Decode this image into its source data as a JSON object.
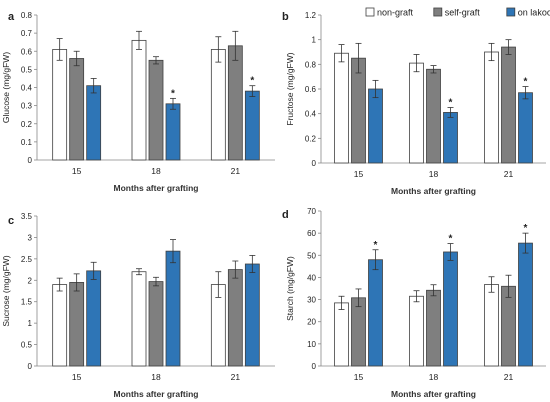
{
  "colors": {
    "non_graft": "#ffffff",
    "self_graft": "#7f7f7f",
    "on_lakoocha": "#2e75b6",
    "bar_stroke": "#404040",
    "axis": "#888888"
  },
  "chart_data": [
    {
      "type": "bar",
      "panel": "a",
      "categories": [
        "15",
        "18",
        "21"
      ],
      "xlabel": "Months after grafting",
      "ylabel": "Glucose (mg/gFW)",
      "ylim": [
        0,
        0.8
      ],
      "yticks": [
        "0",
        "0.1",
        "0.2",
        "0.3",
        "0.4",
        "0.5",
        "0.6",
        "0.7",
        "0.8"
      ],
      "grid": false,
      "legend": "none",
      "series": [
        {
          "name": "non-graft",
          "values": [
            0.61,
            0.66,
            0.61
          ],
          "errors": [
            0.06,
            0.05,
            0.07
          ]
        },
        {
          "name": "self-graft",
          "values": [
            0.56,
            0.55,
            0.63
          ],
          "errors": [
            0.04,
            0.02,
            0.08
          ]
        },
        {
          "name": "on lakoocha",
          "values": [
            0.41,
            0.31,
            0.38
          ],
          "errors": [
            0.04,
            0.03,
            0.03
          ]
        }
      ],
      "significance": [
        false,
        true,
        true
      ]
    },
    {
      "type": "bar",
      "panel": "b",
      "categories": [
        "15",
        "18",
        "21"
      ],
      "xlabel": "Months after grafting",
      "ylabel": "Fructose (mg/gFW)",
      "ylim": [
        0,
        1.2
      ],
      "yticks": [
        "0",
        "0.2",
        "0.4",
        "0.6",
        "0.8",
        "1",
        "1.2"
      ],
      "grid": false,
      "legend": "top",
      "series": [
        {
          "name": "non-graft",
          "values": [
            0.89,
            0.81,
            0.9
          ],
          "errors": [
            0.07,
            0.07,
            0.07
          ]
        },
        {
          "name": "self-graft",
          "values": [
            0.85,
            0.76,
            0.94
          ],
          "errors": [
            0.12,
            0.03,
            0.06
          ]
        },
        {
          "name": "on lakoocha",
          "values": [
            0.6,
            0.41,
            0.57
          ],
          "errors": [
            0.07,
            0.04,
            0.05
          ]
        }
      ],
      "significance": [
        false,
        true,
        true
      ]
    },
    {
      "type": "bar",
      "panel": "c",
      "categories": [
        "15",
        "18",
        "21"
      ],
      "xlabel": "Months after grafting",
      "ylabel": "Sucrose (mg/gFW)",
      "ylim": [
        0,
        3.5
      ],
      "yticks": [
        "0",
        "0.5",
        "1",
        "1.5",
        "2",
        "2.5",
        "3",
        "3.5"
      ],
      "grid": false,
      "legend": "none",
      "series": [
        {
          "name": "non-graft",
          "values": [
            1.9,
            2.2,
            1.9
          ],
          "errors": [
            0.15,
            0.07,
            0.3
          ]
        },
        {
          "name": "self-graft",
          "values": [
            1.95,
            1.97,
            2.25
          ],
          "errors": [
            0.2,
            0.1,
            0.2
          ]
        },
        {
          "name": "on lakoocha",
          "values": [
            2.22,
            2.68,
            2.38
          ],
          "errors": [
            0.2,
            0.27,
            0.2
          ]
        }
      ],
      "significance": [
        false,
        false,
        false
      ]
    },
    {
      "type": "bar",
      "panel": "d",
      "categories": [
        "15",
        "18",
        "21"
      ],
      "xlabel": "Months after grafting",
      "ylabel": "Starch (mg/gFW)",
      "ylim": [
        0,
        70
      ],
      "yticks": [
        "0",
        "10",
        "20",
        "30",
        "40",
        "50",
        "60",
        "70"
      ],
      "grid": false,
      "legend": "none",
      "series": [
        {
          "name": "non-graft",
          "values": [
            28.5,
            31.5,
            36.8
          ],
          "errors": [
            3,
            2.5,
            3.5
          ]
        },
        {
          "name": "self-graft",
          "values": [
            30.8,
            34.2,
            36
          ],
          "errors": [
            4,
            2.5,
            5
          ]
        },
        {
          "name": "on lakoocha",
          "values": [
            48,
            51.5,
            55.5
          ],
          "errors": [
            4.5,
            3.8,
            4.5
          ]
        }
      ],
      "significance": [
        true,
        true,
        true
      ]
    }
  ],
  "legend": {
    "items": [
      "non-graft",
      "self-graft",
      "on lakoocha"
    ]
  },
  "significance_marker": "*"
}
